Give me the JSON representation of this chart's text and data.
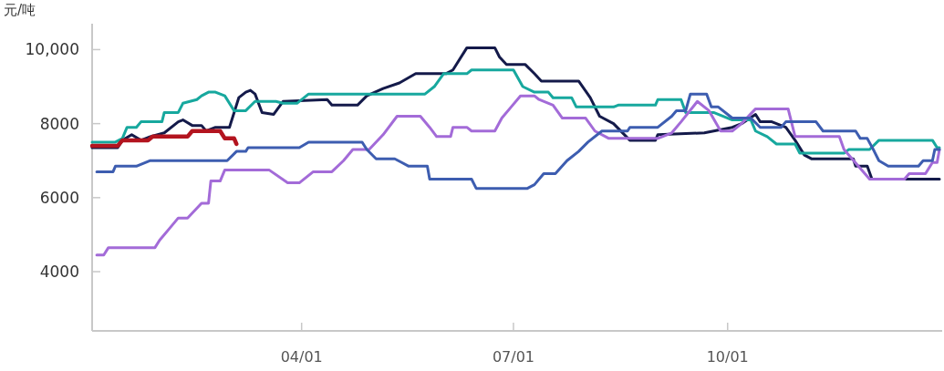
{
  "chart_data": {
    "type": "line",
    "ylabel": "元/吨",
    "xlim": [
      "--01-01",
      "--12-31"
    ],
    "xticks": [
      {
        "value": "--04-01",
        "label": "04/01"
      },
      {
        "value": "--07-01",
        "label": "07/01"
      },
      {
        "value": "--10-01",
        "label": "10/01"
      }
    ],
    "ylim": [
      2400,
      10700
    ],
    "yticks": [
      4000,
      6000,
      8000,
      {
        "value": 10000,
        "label": "10,000"
      }
    ],
    "grid": false,
    "marker": "none",
    "line_style": "solid",
    "series": [
      {
        "color": "#141a4a",
        "x": [
          "--01-01",
          "--01-12",
          "--01-14",
          "--01-18",
          "--01-22",
          "--01-26",
          "--02-01",
          "--02-07",
          "--02-09",
          "--02-13",
          "--02-17",
          "--02-19",
          "--02-23",
          "--03-01",
          "--03-03",
          "--03-05",
          "--03-08",
          "--03-10",
          "--03-12",
          "--03-15",
          "--03-20",
          "--03-24",
          "--04-12",
          "--04-14",
          "--04-25",
          "--04-29",
          "--05-06",
          "--05-13",
          "--05-20",
          "--06-02",
          "--06-05",
          "--06-11",
          "--06-23",
          "--06-25",
          "--06-28",
          "--07-06",
          "--07-10",
          "--07-13",
          "--07-29",
          "--08-03",
          "--08-07",
          "--08-13",
          "--08-20",
          "--08-31",
          "--09-01",
          "--09-21",
          "--10-03",
          "--10-07",
          "--10-13",
          "--10-15",
          "--10-20",
          "--10-26",
          "--10-30",
          "--11-03",
          "--11-06",
          "--11-24",
          "--11-25",
          "--11-30",
          "--12-02",
          "--12-31"
        ],
        "values": [
          7350,
          7350,
          7550,
          7700,
          7550,
          7650,
          7750,
          8050,
          8100,
          7950,
          7950,
          7800,
          7900,
          7900,
          8300,
          8700,
          8850,
          8900,
          8800,
          8300,
          8250,
          8600,
          8650,
          8500,
          8500,
          8750,
          8950,
          9100,
          9350,
          9350,
          9450,
          10050,
          10050,
          9800,
          9600,
          9600,
          9350,
          9150,
          9150,
          8700,
          8200,
          8000,
          7550,
          7550,
          7700,
          7750,
          7900,
          8000,
          8250,
          8050,
          8050,
          7900,
          7550,
          7150,
          7050,
          7050,
          6850,
          6850,
          6500,
          6500
        ]
      },
      {
        "color": "#17a89e",
        "x": [
          "--01-01",
          "--01-11",
          "--01-14",
          "--01-16",
          "--01-20",
          "--01-22",
          "--01-31",
          "--02-01",
          "--02-07",
          "--02-09",
          "--02-15",
          "--02-17",
          "--02-20",
          "--02-23",
          "--02-27",
          "--03-03",
          "--03-08",
          "--03-12",
          "--03-21",
          "--03-24",
          "--03-30",
          "--04-04",
          "--05-24",
          "--05-28",
          "--06-01",
          "--06-11",
          "--06-13",
          "--07-01",
          "--07-05",
          "--07-10",
          "--07-16",
          "--07-18",
          "--07-26",
          "--07-28",
          "--08-13",
          "--08-15",
          "--08-31",
          "--09-01",
          "--09-11",
          "--09-13",
          "--09-25",
          "--10-03",
          "--10-11",
          "--10-13",
          "--10-18",
          "--10-22",
          "--10-30",
          "--11-01",
          "--11-20",
          "--11-22",
          "--12-01",
          "--12-05",
          "--12-28",
          "--12-30",
          "--12-31"
        ],
        "values": [
          7500,
          7500,
          7600,
          7900,
          7900,
          8050,
          8050,
          8300,
          8300,
          8550,
          8650,
          8750,
          8850,
          8850,
          8750,
          8350,
          8350,
          8600,
          8600,
          8550,
          8550,
          8800,
          8800,
          9000,
          9350,
          9350,
          9450,
          9450,
          9000,
          8850,
          8850,
          8700,
          8700,
          8450,
          8450,
          8500,
          8500,
          8650,
          8650,
          8300,
          8300,
          8100,
          8100,
          7800,
          7650,
          7450,
          7450,
          7200,
          7200,
          7300,
          7300,
          7550,
          7550,
          7350,
          7350
        ]
      },
      {
        "color": "#a36bd8",
        "x": [
          "--01-03",
          "--01-06",
          "--01-08",
          "--01-28",
          "--01-30",
          "--02-03",
          "--02-07",
          "--02-11",
          "--02-17",
          "--02-20",
          "--02-21",
          "--02-25",
          "--02-27",
          "--03-18",
          "--03-26",
          "--03-31",
          "--04-06",
          "--04-14",
          "--04-19",
          "--04-23",
          "--04-30",
          "--05-06",
          "--05-12",
          "--05-22",
          "--05-26",
          "--05-29",
          "--06-04",
          "--06-05",
          "--06-11",
          "--06-13",
          "--06-23",
          "--06-26",
          "--06-30",
          "--07-04",
          "--07-10",
          "--07-12",
          "--07-18",
          "--07-22",
          "--08-01",
          "--08-05",
          "--08-11",
          "--09-01",
          "--09-07",
          "--09-11",
          "--09-18",
          "--09-23",
          "--09-28",
          "--10-03",
          "--10-07",
          "--10-13",
          "--10-27",
          "--10-30",
          "--11-18",
          "--11-20",
          "--12-01",
          "--12-16",
          "--12-18",
          "--12-25",
          "--12-28",
          "--12-30",
          "--12-31"
        ],
        "values": [
          4450,
          4450,
          4650,
          4650,
          4850,
          5150,
          5450,
          5450,
          5850,
          5850,
          6450,
          6450,
          6750,
          6750,
          6400,
          6400,
          6700,
          6700,
          7000,
          7300,
          7300,
          7700,
          8200,
          8200,
          7900,
          7650,
          7650,
          7900,
          7900,
          7800,
          7800,
          8150,
          8450,
          8750,
          8750,
          8650,
          8500,
          8150,
          8150,
          7800,
          7600,
          7600,
          7750,
          8050,
          8600,
          8350,
          7800,
          7800,
          8000,
          8400,
          8400,
          7650,
          7650,
          7300,
          6500,
          6500,
          6650,
          6650,
          6950,
          6950,
          7300
        ]
      },
      {
        "color": "#3d5db0",
        "x": [
          "--01-03",
          "--01-10",
          "--01-11",
          "--01-20",
          "--01-26",
          "--02-28",
          "--03-04",
          "--03-08",
          "--03-09",
          "--03-31",
          "--04-04",
          "--04-27",
          "--04-29",
          "--05-03",
          "--05-11",
          "--05-14",
          "--05-17",
          "--05-25",
          "--05-26",
          "--06-13",
          "--06-15",
          "--07-07",
          "--07-10",
          "--07-14",
          "--07-19",
          "--07-24",
          "--07-29",
          "--08-02",
          "--08-08",
          "--08-19",
          "--08-20",
          "--09-01",
          "--09-07",
          "--09-09",
          "--09-13",
          "--09-15",
          "--09-22",
          "--09-24",
          "--09-27",
          "--10-03",
          "--10-11",
          "--10-15",
          "--10-24",
          "--10-26",
          "--11-08",
          "--11-11",
          "--11-25",
          "--11-27",
          "--11-30",
          "--12-03",
          "--12-05",
          "--12-09",
          "--12-22",
          "--12-24",
          "--12-28",
          "--12-29",
          "--12-31"
        ],
        "values": [
          6700,
          6700,
          6850,
          6850,
          7000,
          7000,
          7250,
          7250,
          7350,
          7350,
          7500,
          7500,
          7300,
          7050,
          7050,
          6950,
          6850,
          6850,
          6500,
          6500,
          6250,
          6250,
          6350,
          6650,
          6650,
          7000,
          7250,
          7500,
          7800,
          7800,
          7900,
          7900,
          8200,
          8350,
          8350,
          8800,
          8800,
          8450,
          8450,
          8150,
          8150,
          7900,
          7900,
          8050,
          8050,
          7800,
          7800,
          7600,
          7600,
          7250,
          7000,
          6850,
          6850,
          7000,
          7000,
          7300,
          7300
        ]
      },
      {
        "color": "#b3141f",
        "x": [
          "--01-01",
          "--01-12",
          "--01-14",
          "--01-25",
          "--01-27",
          "--02-11",
          "--02-13",
          "--02-25",
          "--02-27",
          "--03-03",
          "--03-04"
        ],
        "values": [
          7400,
          7400,
          7550,
          7550,
          7650,
          7650,
          7800,
          7800,
          7600,
          7600,
          7450
        ]
      }
    ]
  }
}
